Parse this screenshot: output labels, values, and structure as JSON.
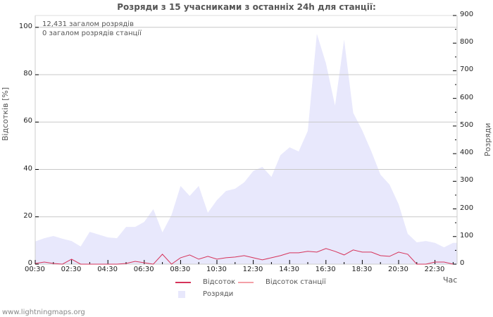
{
  "title": "Розряди з 15 учасниками з останніх 24h для станції:",
  "info": {
    "total_strokes": "12,431 загалом розрядів",
    "station_strokes": "0 загалом розрядів станції"
  },
  "footer": "www.lightningmaps.org",
  "colors": {
    "area_fill": "#e8e8fc",
    "percent_line": "#d6335a",
    "station_line": "#f4a0a8",
    "grid": "#c8c8c8",
    "text": "#555555"
  },
  "chart_data": {
    "type": "area",
    "title": "Розряди з 15 учасниками з останніх 24h для станції:",
    "xlabel": "Час",
    "ylabel_left": "Відсотків   [%]",
    "ylabel_right": "Розряди",
    "ylim_left": [
      0,
      105
    ],
    "ylim_right": [
      0,
      900
    ],
    "yticks_left": [
      "0",
      "20",
      "40",
      "60",
      "80",
      "100"
    ],
    "yticks_right": [
      "0",
      "100",
      "200",
      "300",
      "400",
      "500",
      "600",
      "700",
      "800",
      "900"
    ],
    "xticks": [
      "00:30",
      "02:30",
      "04:30",
      "06:30",
      "08:30",
      "10:30",
      "12:30",
      "14:30",
      "16:30",
      "18:30",
      "20:30",
      "22:30"
    ],
    "grid": true,
    "legend_position": "bottom",
    "x_points": 47,
    "series": [
      {
        "name": "Розряди",
        "axis": "right",
        "kind": "area",
        "values": [
          82,
          94,
          102,
          92,
          84,
          64,
          117,
          107,
          97,
          94,
          135,
          135,
          153,
          199,
          115,
          178,
          283,
          247,
          283,
          186,
          232,
          265,
          273,
          296,
          337,
          352,
          316,
          395,
          423,
          408,
          482,
          834,
          727,
          574,
          813,
          548,
          484,
          408,
          324,
          288,
          217,
          110,
          79,
          84,
          77,
          61,
          77
        ]
      },
      {
        "name": "Відсоток",
        "axis": "left",
        "kind": "line",
        "values": [
          0.3,
          0.9,
          0.3,
          0,
          2.1,
          0,
          0,
          0,
          0,
          0,
          0.3,
          1.2,
          0.6,
          0,
          4.2,
          0,
          2.7,
          3.9,
          2.1,
          3.3,
          2.1,
          2.7,
          3.0,
          3.6,
          2.7,
          1.8,
          2.7,
          3.6,
          4.8,
          4.8,
          5.4,
          5.1,
          6.6,
          5.4,
          3.9,
          6.0,
          5.1,
          5.1,
          3.6,
          3.3,
          5.1,
          4.2,
          0,
          0,
          0.9,
          0.9,
          0
        ]
      },
      {
        "name": "Відсоток станції",
        "axis": "left",
        "kind": "line",
        "values": []
      }
    ]
  },
  "legend": [
    {
      "label": "Відсоток",
      "type": "line",
      "color": "#d6335a"
    },
    {
      "label": "Відсоток станції",
      "type": "line",
      "color": "#f4a0a8"
    },
    {
      "label": "Розряди",
      "type": "box",
      "color": "#e8e8fc"
    }
  ]
}
